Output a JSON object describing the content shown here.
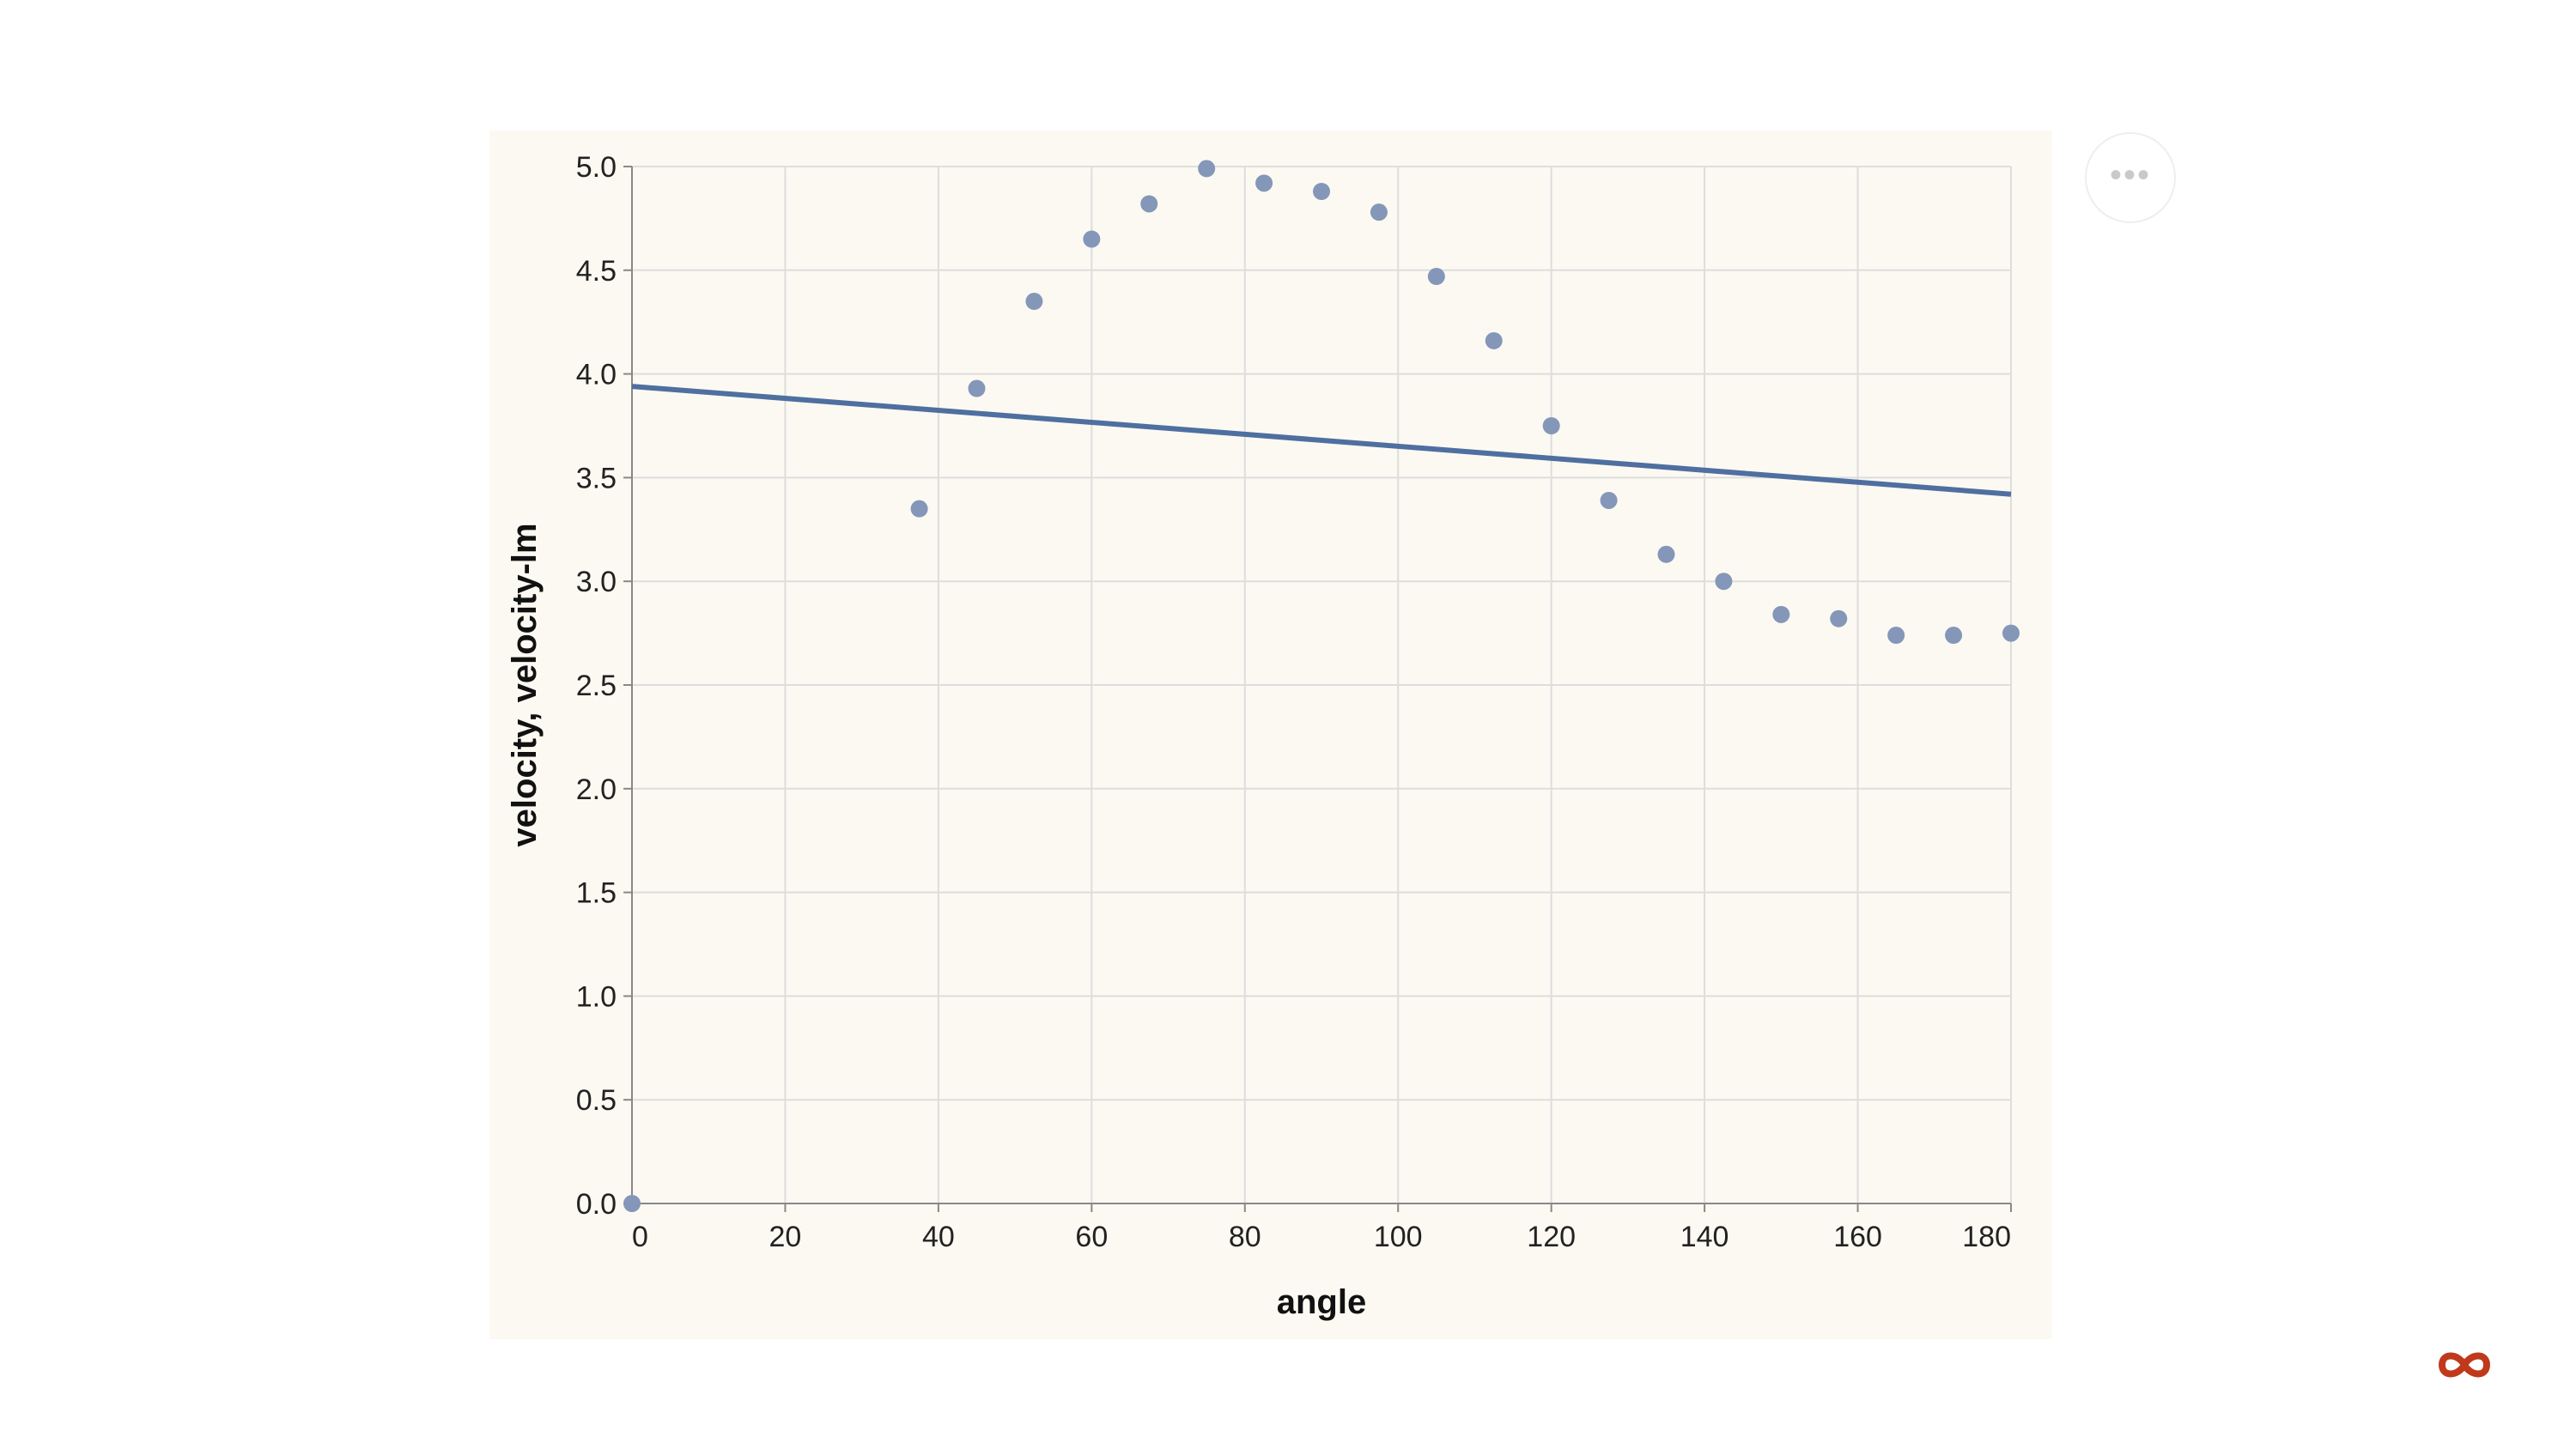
{
  "chart_data": {
    "type": "scatter",
    "xlabel": "angle",
    "ylabel": "velocity, velocity-lm",
    "xlim": [
      0,
      180
    ],
    "ylim": [
      0,
      5
    ],
    "x_ticks": [
      0,
      20,
      40,
      60,
      80,
      100,
      120,
      140,
      160,
      180
    ],
    "y_ticks": [
      "0.0",
      "0.5",
      "1.0",
      "1.5",
      "2.0",
      "2.5",
      "3.0",
      "3.5",
      "4.0",
      "4.5",
      "5.0"
    ],
    "grid": true,
    "background": "#fcf9f2",
    "series": [
      {
        "type": "scatter",
        "color": "#8497b9",
        "points": [
          [
            0,
            0.0
          ],
          [
            37.5,
            3.35
          ],
          [
            45,
            3.93
          ],
          [
            52.5,
            4.35
          ],
          [
            60,
            4.65
          ],
          [
            67.5,
            4.82
          ],
          [
            75,
            4.99
          ],
          [
            82.5,
            4.92
          ],
          [
            90,
            4.88
          ],
          [
            97.5,
            4.78
          ],
          [
            105,
            4.47
          ],
          [
            112.5,
            4.16
          ],
          [
            120,
            3.75
          ],
          [
            127.5,
            3.39
          ],
          [
            135,
            3.13
          ],
          [
            142.5,
            3.0
          ],
          [
            150,
            2.84
          ],
          [
            157.5,
            2.82
          ],
          [
            165,
            2.74
          ],
          [
            172.5,
            2.74
          ],
          [
            180,
            2.75
          ]
        ]
      },
      {
        "type": "line",
        "color": "#4e6fa0",
        "points": [
          [
            0,
            3.94
          ],
          [
            180,
            3.42
          ]
        ]
      }
    ]
  },
  "ui": {
    "actions_icon": "more-horizontal-icon",
    "actions_glyph": "•••",
    "logo_icon": "infinity-logo-icon",
    "logo_color": "#c0391b"
  }
}
